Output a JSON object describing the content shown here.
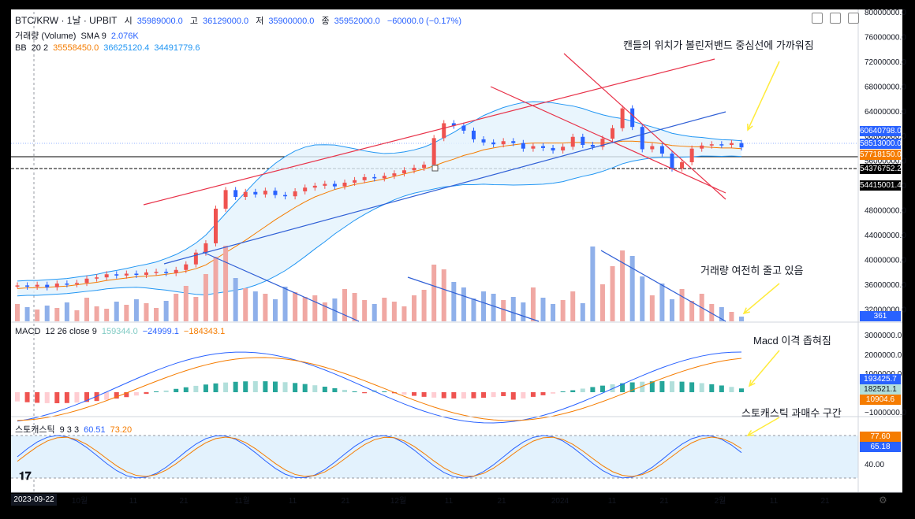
{
  "header": {
    "symbol": "BTC/KRW · 1날 · UPBIT",
    "ohlc": [
      {
        "label": "시",
        "value": "35989000.0"
      },
      {
        "label": "고",
        "value": "36129000.0"
      },
      {
        "label": "저",
        "value": "35900000.0"
      },
      {
        "label": "종",
        "value": "35952000.0"
      }
    ],
    "change": "−60000.0 (−0.17%)"
  },
  "indicators": {
    "volume": {
      "name": "거래량 (Volume)",
      "params": "SMA 9",
      "value": "2.076K"
    },
    "bb": {
      "name": "BB",
      "params": "20 2",
      "v1": "35558450.0",
      "v2": "36625120.4",
      "v3": "34491779.6"
    },
    "macd": {
      "name": "MACD",
      "params": "12 26 close 9",
      "v1": "159344.0",
      "v2": "−24999.1",
      "v3": "−184343.1"
    },
    "stoch": {
      "name": "스토캐스틱",
      "params": "9 3 3",
      "v1": "60.51",
      "v2": "73.20"
    }
  },
  "annotations": {
    "price": "캔들의 위치가 볼린저밴드 중심선에 가까워짐",
    "volume": "거래량 여전히 줄고 있음",
    "macd": "Macd 이격 좁혀짐",
    "stoch": "스토캐스틱 과매수 구간"
  },
  "price_axis": [
    "80000000.0",
    "76000000.0",
    "72000000.0",
    "68000000.0",
    "64000000.0",
    "60000000.0",
    "56000000.0",
    "52000000.0",
    "48000000.0",
    "44000000.0",
    "40000000.0",
    "36000000.0",
    "32000000.0"
  ],
  "price_labels": [
    {
      "text": "60640798.0",
      "color": "#2962ff"
    },
    {
      "text": "58513000.0",
      "color": "#2962ff"
    },
    {
      "text": "57718150.0",
      "color": "#f57c00"
    },
    {
      "text": "54376752.2",
      "color": "#000000"
    },
    {
      "text": "54415001.4",
      "color": "#000000"
    }
  ],
  "volume_label": "361",
  "macd_axis": [
    "3000000.0",
    "2000000.0",
    "1000000.0",
    "−1000000.0"
  ],
  "macd_labels": [
    {
      "text": "193425.7",
      "color": "#2962ff"
    },
    {
      "text": "182521.1",
      "color": "#b2dfdb"
    },
    {
      "text": "10904.6",
      "color": "#f57c00"
    }
  ],
  "stoch_axis": [
    "40.00"
  ],
  "stoch_labels": [
    {
      "text": "77.60",
      "color": "#f57c00"
    },
    {
      "text": "65.18",
      "color": "#2962ff"
    }
  ],
  "time_axis": {
    "cursor": "2023-09-22",
    "ticks": [
      "10월",
      "11",
      "21",
      "11월",
      "11",
      "21",
      "12월",
      "11",
      "21",
      "2024",
      "11",
      "21",
      "2월",
      "11",
      "21"
    ]
  },
  "colors": {
    "up": "#ef5350",
    "down": "#2962ff",
    "bb_basis": "#f57c00",
    "bb_band": "#2196f3",
    "trend_red": "#e8334a",
    "trend_blue": "#2f5fd6",
    "arrow": "#ffeb3b"
  },
  "chart_data": {
    "type": "line",
    "title": "BTC/KRW · 1날 · UPBIT",
    "ylim": [
      30000000,
      80000000
    ],
    "series": [
      {
        "name": "BTC/KRW",
        "values": [
          35800000,
          35600000,
          35900000,
          35500000,
          36100000,
          36000000,
          36200000,
          36900000,
          37100000,
          37600000,
          37400000,
          37700000,
          37500000,
          37900000,
          38000000,
          37800000,
          38300000,
          39200000,
          41100000,
          42600000,
          48200000,
          51200000,
          50100000,
          50900000,
          50500000,
          51100000,
          50400000,
          50200000,
          51000000,
          51600000,
          51900000,
          52200000,
          51800000,
          52400000,
          52800000,
          53300000,
          53100000,
          53500000,
          53900000,
          54400000,
          54800000,
          55300000,
          59600000,
          62000000,
          61600000,
          60800000,
          59400000,
          58900000,
          58600000,
          59100000,
          58800000,
          57900000,
          58300000,
          58000000,
          57600000,
          58200000,
          59800000,
          58500000,
          58200000,
          59500000,
          61200000,
          64400000,
          61400000,
          57800000,
          58300000,
          57100000,
          54700000,
          55700000,
          57900000,
          58400000,
          58600000,
          58500000,
          58800000,
          58100000
        ]
      },
      {
        "name": "BB",
        "values": [
          35300000,
          35400000,
          35400000,
          35500000,
          35600000,
          35700000,
          35900000,
          36100000,
          36300000,
          36600000,
          36800000,
          37000000,
          37200000,
          37300000,
          37400000,
          37600000,
          37800000,
          38100000,
          38500000,
          39100000,
          40100000,
          41100000,
          42100000,
          43100000,
          44200000,
          45300000,
          46400000,
          47400000,
          48400000,
          49300000,
          50100000,
          50700000,
          51300000,
          51700000,
          52100000,
          52400000,
          52700000,
          53000000,
          53400000,
          53800000,
          54200000,
          54600000,
          55100000,
          55700000,
          56200000,
          56800000,
          57200000,
          57700000,
          58000000,
          58300000,
          58500000,
          58700000,
          58800000,
          58800000,
          58800000,
          58800000,
          58900000,
          58900000,
          58800000,
          58800000,
          58900000,
          59100000,
          59100000,
          59000000,
          58900000,
          58700000,
          58400000,
          58300000,
          58200000,
          58200000,
          58100000,
          58000000,
          58000000,
          57900000
        ]
      }
    ]
  }
}
